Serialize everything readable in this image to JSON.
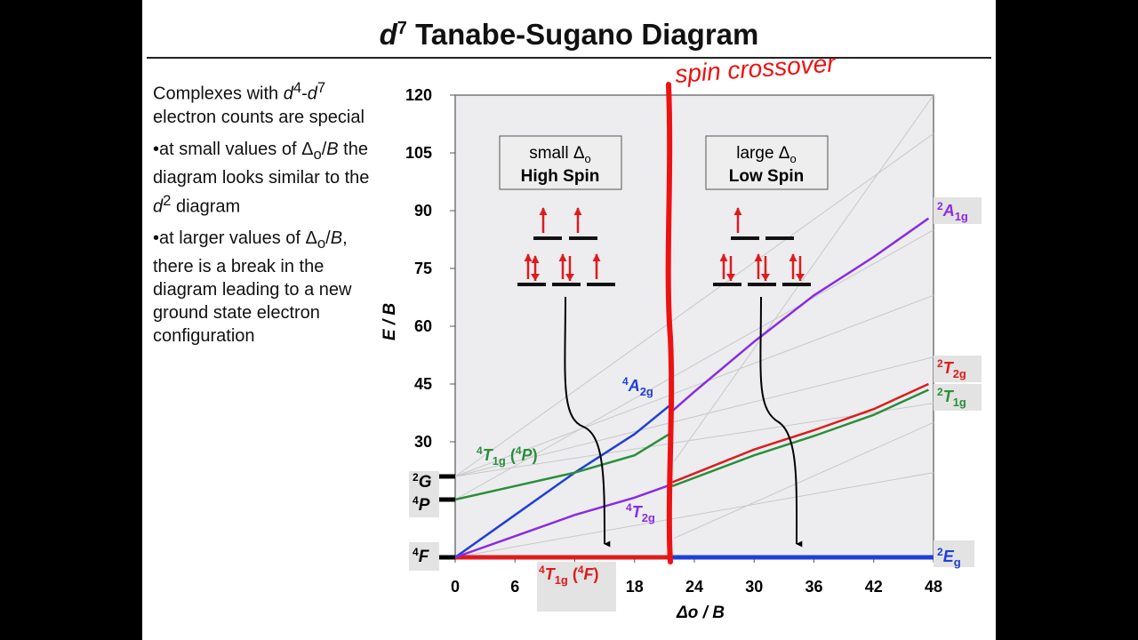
{
  "title": {
    "prefix": "d",
    "sup": "7",
    "main": " Tanabe-Sugano Diagram"
  },
  "text": {
    "p1_a": "Complexes with ",
    "p1_b": "-",
    "p1_c": " electron counts are special",
    "p2_a": "•at small values of Δ",
    "p2_sub": "o",
    "p2_b": "/",
    "p2_c": " the diagram looks similar to the ",
    "p2_d": " diagram",
    "p3_a": "•at larger values of Δ",
    "p3_sub": "o",
    "p3_b": "/",
    "p3_c": ", there is a break in the diagram leading to a new ground state electron configuration",
    "d_letter": "d",
    "sup4": "4",
    "sup7": "7",
    "sup2": "2",
    "B_letter": "B"
  },
  "annotation": {
    "handwritten": "spin crossover"
  },
  "boxes": {
    "left": {
      "line1_a": "small Δ",
      "line1_sub": "o",
      "line2": "High Spin"
    },
    "right": {
      "line1_a": "large Δ",
      "line1_sub": "o",
      "line2": "Low Spin"
    }
  },
  "free_ion_terms": [
    {
      "sup": "2",
      "letter": "G",
      "value": 21
    },
    {
      "sup": "4",
      "letter": "P",
      "value": 15
    },
    {
      "sup": "4",
      "letter": "F",
      "value": 0
    }
  ],
  "colors": {
    "red": "#dd1c1c",
    "blue": "#1f3fd6",
    "purple": "#8a2be2",
    "green": "#2a8f3a",
    "plot_bg": "#ededf0",
    "grid": "#c8c8c8",
    "label_bg": "#e3e3e3"
  },
  "chart_data": {
    "type": "line",
    "xlabel": "Δo / B",
    "ylabel": "E / B",
    "xlim": [
      0,
      48
    ],
    "ylim": [
      0,
      120
    ],
    "xticks": [
      0,
      6,
      12,
      18,
      24,
      30,
      36,
      42,
      48
    ],
    "xtick_labels": [
      "0",
      "6",
      "",
      "18",
      "24",
      "30",
      "36",
      "42",
      "48"
    ],
    "yticks": [
      30,
      45,
      60,
      75,
      90,
      105,
      120
    ],
    "grid": false,
    "crossover_x": 21.8,
    "series": [
      {
        "key": "red_ground_hs",
        "color": "red",
        "x": [
          0,
          21.8
        ],
        "y": [
          0,
          0
        ]
      },
      {
        "key": "blue_ground_ls",
        "color": "blue",
        "x": [
          21.8,
          48
        ],
        "y": [
          0,
          0
        ]
      },
      {
        "key": "4A2g",
        "color": "blue",
        "x": [
          0,
          6,
          12,
          18,
          21.8
        ],
        "y": [
          0,
          11,
          22,
          32,
          40
        ]
      },
      {
        "key": "4T1g_P",
        "color": "green",
        "x": [
          0,
          6,
          12,
          18,
          21.8
        ],
        "y": [
          15,
          18.5,
          22,
          26.5,
          32.5
        ]
      },
      {
        "key": "4T2g",
        "color": "purple",
        "x": [
          0,
          6,
          12,
          18,
          21.8
        ],
        "y": [
          0,
          5.5,
          11,
          15.5,
          19
        ]
      },
      {
        "key": "2A1g",
        "color": "purple",
        "x": [
          21.8,
          24,
          30,
          36,
          42,
          47.5
        ],
        "y": [
          38,
          43,
          56,
          68,
          78,
          88
        ]
      },
      {
        "key": "2T2g",
        "color": "red",
        "x": [
          21.8,
          30,
          36,
          42,
          47.5
        ],
        "y": [
          19.5,
          28,
          33,
          38.5,
          45
        ]
      },
      {
        "key": "2T1g",
        "color": "green",
        "x": [
          21.8,
          30,
          36,
          42,
          47.5
        ],
        "y": [
          18.5,
          26.5,
          31.5,
          37,
          43.5
        ]
      }
    ],
    "labels": [
      {
        "sup": "4",
        "base": "A",
        "sub": "2g",
        "color": "blue"
      },
      {
        "sup": "4",
        "base": "T",
        "sub": "1g",
        "extra_sup": "4",
        "extra": "P",
        "color": "green"
      },
      {
        "sup": "4",
        "base": "T",
        "sub": "2g",
        "color": "purple"
      },
      {
        "sup": "4",
        "base": "T",
        "sub": "1g",
        "extra_sup": "4",
        "extra": "F",
        "color": "red"
      },
      {
        "sup": "2",
        "base": "A",
        "sub": "1g",
        "color": "purple"
      },
      {
        "sup": "2",
        "base": "T",
        "sub": "2g",
        "color": "red"
      },
      {
        "sup": "2",
        "base": "T",
        "sub": "1g",
        "color": "green"
      },
      {
        "sup": "2",
        "base": "E",
        "sub": "g",
        "color": "blue"
      }
    ]
  }
}
